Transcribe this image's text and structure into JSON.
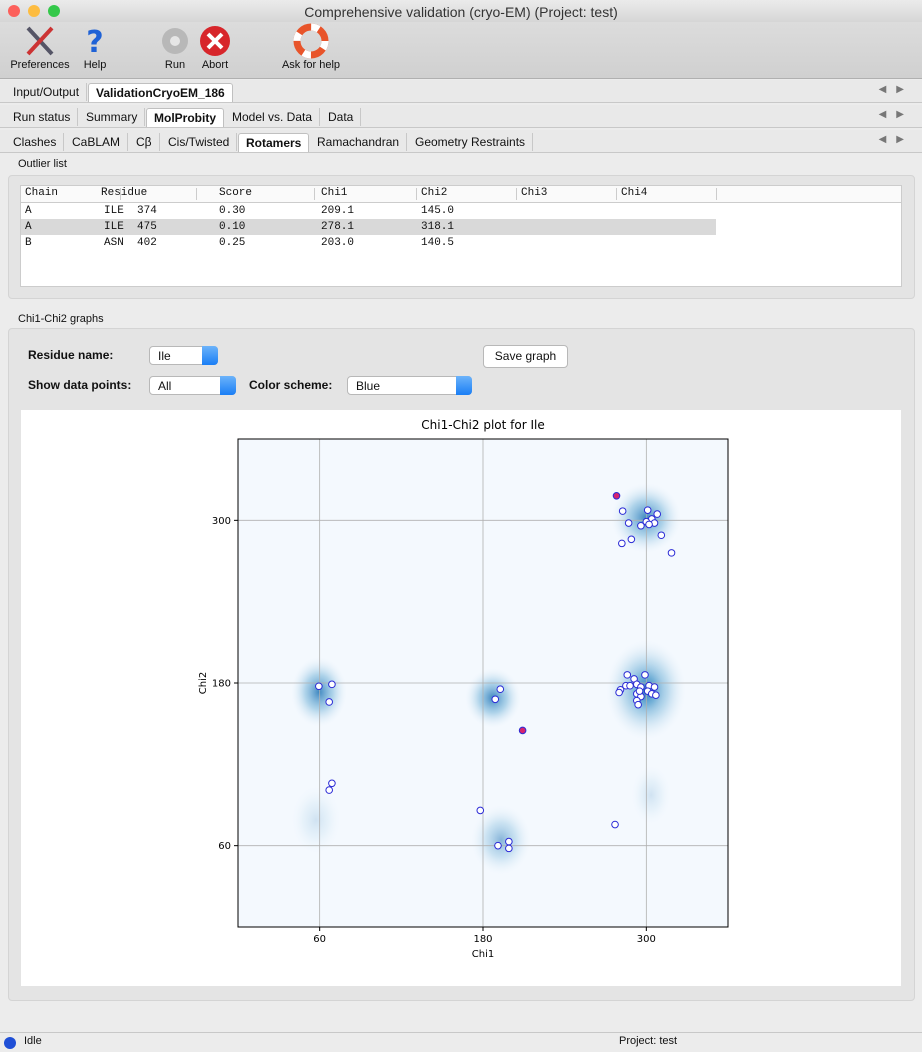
{
  "window": {
    "title": "Comprehensive validation (cryo-EM) (Project: test)"
  },
  "toolbar": [
    "Preferences",
    "Help",
    "Run",
    "Abort",
    "Ask for help"
  ],
  "tabs": {
    "level1": [
      "Input/Output",
      "ValidationCryoEM_186"
    ],
    "level2": [
      "Run status",
      "Summary",
      "MolProbity",
      "Model vs. Data",
      "Data"
    ],
    "level3": [
      "Clashes",
      "CaBLAM",
      "Cβ",
      "Cis/Twisted",
      "Rotamers",
      "Ramachandran",
      "Geometry Restraints"
    ],
    "active": [
      1,
      2,
      4
    ]
  },
  "outliers": {
    "title": "Outlier list",
    "columns": [
      "Chain",
      "Residue",
      "Score",
      "Chi1",
      "Chi2",
      "Chi3",
      "Chi4"
    ],
    "rows": [
      [
        "A",
        "ILE  374",
        "0.30",
        "209.1",
        "145.0"
      ],
      [
        "A",
        "ILE  475",
        "0.10",
        "278.1",
        "318.1"
      ],
      [
        "B",
        "ASN  402",
        "0.25",
        "203.0",
        "140.5"
      ]
    ],
    "selected_row": 1
  },
  "graphs": {
    "title": "Chi1-Chi2 graphs",
    "residue_label": "Residue name:",
    "residue": "Ile",
    "save": "Save graph",
    "points_label": "Show data points:",
    "points": "All",
    "scheme_label": "Color scheme:",
    "scheme": "Blue"
  },
  "chart_data": {
    "type": "scatter",
    "title": "Chi1-Chi2 plot for Ile",
    "xlabel": "Chi1",
    "ylabel": "Chi2",
    "xlim": [
      0,
      360
    ],
    "ylim": [
      0,
      360
    ],
    "xticks": [
      60,
      180,
      300
    ],
    "yticks": [
      60,
      180,
      300
    ],
    "grid": true,
    "series": [
      {
        "color": "#2b2bd6",
        "fill": "#ffffff",
        "x": [
          282.6,
          287,
          289,
          282,
          301,
          308,
          304,
          300,
          296,
          306,
          311,
          318.5,
          302,
          286,
          291,
          299,
          281,
          285,
          288,
          293,
          296,
          302,
          306,
          301,
          304,
          307,
          293,
          296,
          293,
          294,
          280,
          295,
          59.4,
          69,
          67,
          189,
          192.7,
          69,
          67,
          178,
          191,
          199,
          199,
          277
        ],
        "y": [
          306.8,
          298,
          286,
          283,
          307.5,
          304.6,
          301,
          299,
          296,
          298,
          289,
          276,
          297,
          186,
          183,
          186,
          175,
          178,
          178,
          179,
          177,
          178,
          177,
          174,
          172,
          171,
          172,
          170,
          167,
          164,
          173,
          174,
          177.6,
          179,
          166,
          168,
          175.4,
          106,
          101,
          86,
          60,
          63,
          58,
          75.6
        ]
      },
      {
        "color": "#2b2bd6",
        "fill": "#d6246e",
        "x": [
          209.1,
          278.1
        ],
        "y": [
          145.0,
          318.1
        ]
      }
    ]
  },
  "status": {
    "state": "Idle",
    "project": "Project: test"
  }
}
